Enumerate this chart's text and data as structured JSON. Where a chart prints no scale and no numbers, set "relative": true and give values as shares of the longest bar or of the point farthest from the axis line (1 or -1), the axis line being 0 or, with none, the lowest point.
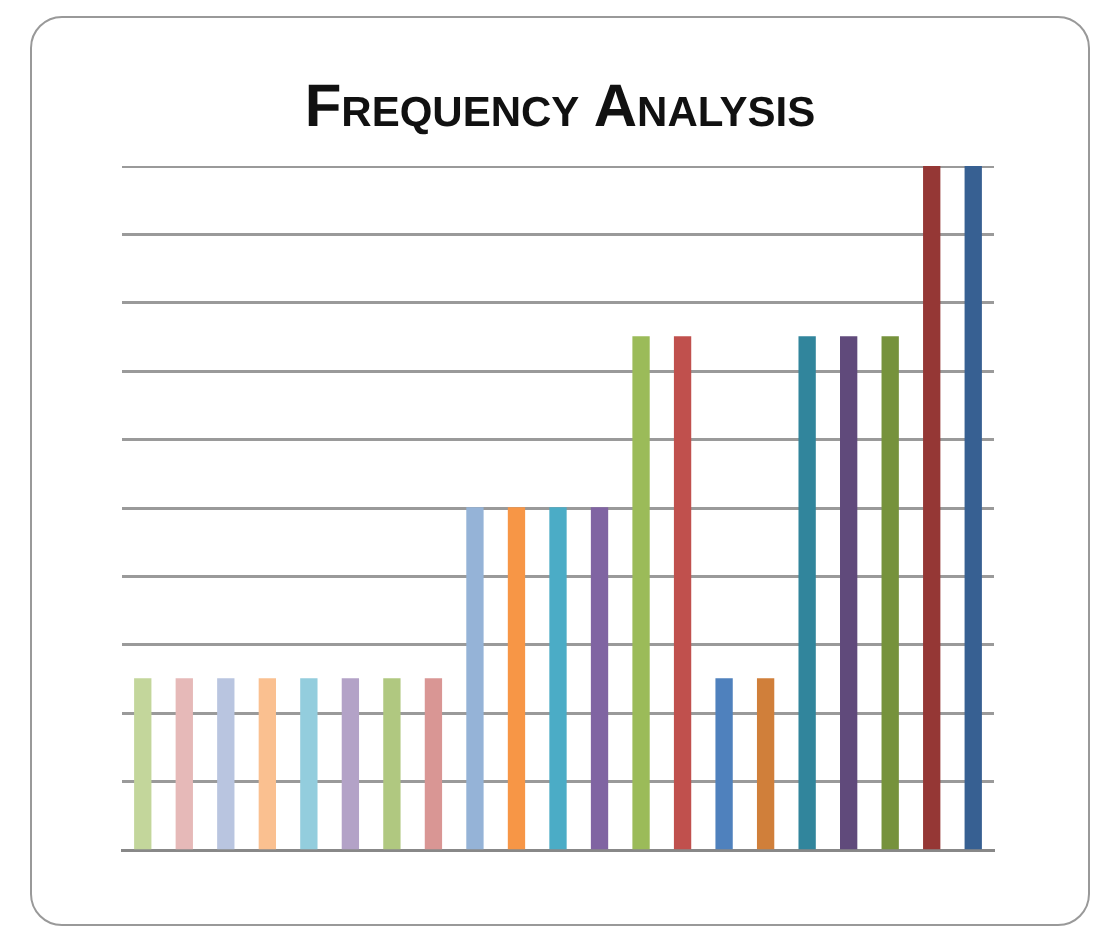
{
  "chart_data": {
    "type": "bar",
    "title": "Frequency Analysis",
    "relative": true,
    "grid": "y",
    "legend": false,
    "tick_labels": false,
    "categories": [
      null,
      null,
      null,
      null,
      null,
      null,
      null,
      null,
      null,
      null,
      null,
      null,
      null,
      null,
      null,
      null,
      null,
      null,
      null,
      null,
      null
    ],
    "values": [
      0.25,
      0.25,
      0.25,
      0.25,
      0.25,
      0.25,
      0.25,
      0.25,
      0.5,
      0.5,
      0.5,
      0.5,
      0.75,
      0.75,
      0.25,
      0.25,
      0.75,
      0.75,
      0.75,
      1,
      1
    ],
    "colors": [
      "#c3d69b",
      "#e6b9b8",
      "#b9c5e0",
      "#fac090",
      "#93cddd",
      "#b3a2c7",
      "#b0c880",
      "#d99694",
      "#95b3d7",
      "#f79646",
      "#4bacc6",
      "#8064a2",
      "#9bbb59",
      "#c0504d",
      "#4f81bd",
      "#d07f3a",
      "#31859c",
      "#604a7b",
      "#76923c",
      "#953735",
      "#376092"
    ]
  }
}
